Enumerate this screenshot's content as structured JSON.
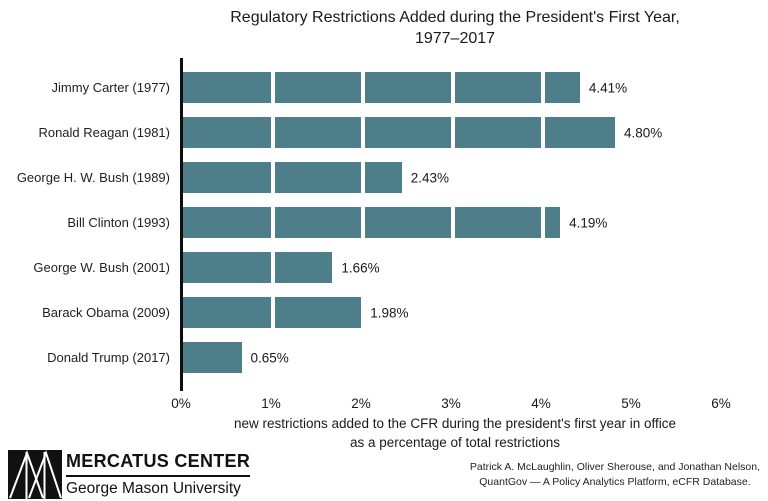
{
  "title": {
    "line1": "Regulatory Restrictions Added during the President's First Year,",
    "line2": "1977–2017"
  },
  "chart_data": {
    "type": "bar",
    "orientation": "horizontal",
    "title": "Regulatory Restrictions Added during the President's First Year, 1977–2017",
    "categories": [
      "Jimmy Carter (1977)",
      "Ronald Reagan (1981)",
      "George H. W. Bush (1989)",
      "Bill Clinton (1993)",
      "George W. Bush (2001)",
      "Barack Obama (2009)",
      "Donald Trump (2017)"
    ],
    "values": [
      4.41,
      4.8,
      2.43,
      4.19,
      1.66,
      1.98,
      0.65
    ],
    "value_labels": [
      "4.41%",
      "4.80%",
      "2.43%",
      "4.19%",
      "1.66%",
      "1.98%",
      "0.65%"
    ],
    "x_ticks": [
      "0%",
      "1%",
      "2%",
      "3%",
      "4%",
      "5%",
      "6%"
    ],
    "xlim": [
      0,
      6
    ],
    "segment_interval": 1,
    "xlabel_line1": "new restrictions added to the CFR during the president's first year in office",
    "xlabel_line2": "as a percentage of total restrictions",
    "bar_color": "#4d7e8a",
    "axis_color": "#0e0e0e",
    "grid": false,
    "legend": false
  },
  "footer": {
    "brand_name": "MERCATUS CENTER",
    "brand_university": "George Mason University",
    "logo_icon": "mercatus-triangles-logo",
    "credit_line1": "Patrick A. McLaughlin, Oliver Sherouse, and Jonathan Nelson,",
    "credit_line2": "QuantGov — A Policy Analytics Platform, eCFR Database."
  }
}
